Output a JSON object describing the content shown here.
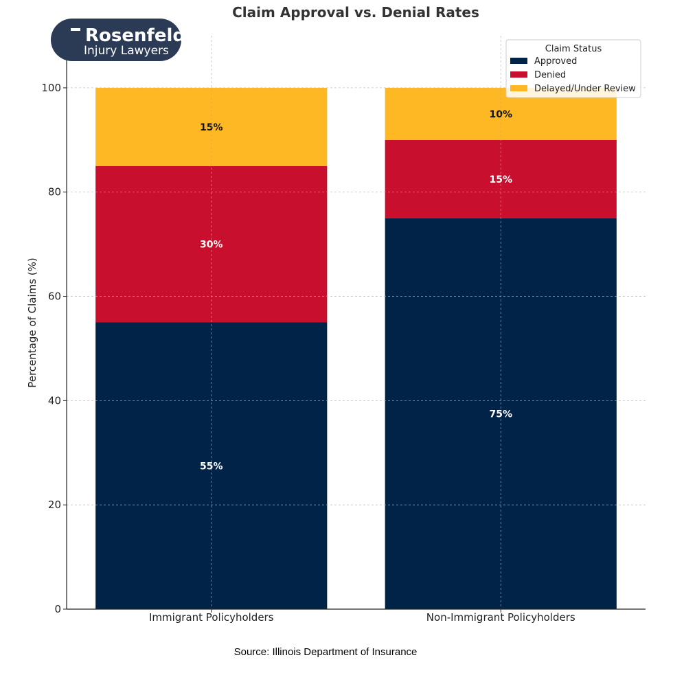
{
  "logo": {
    "line1": "Rosenfeld",
    "line2": "Injury Lawyers",
    "bg_color": "#2b3a55"
  },
  "source_note": "Source: Illinois Department of Insurance",
  "chart_data": {
    "type": "bar",
    "stacked": true,
    "title": "Claim Approval vs. Denial Rates",
    "xlabel": "",
    "ylabel": "Percentage of Claims (%)",
    "ylim": [
      0,
      110
    ],
    "yticks": [
      0,
      20,
      40,
      60,
      80,
      100
    ],
    "grid": true,
    "categories": [
      "Immigrant Policyholders",
      "Non-Immigrant Policyholders"
    ],
    "series": [
      {
        "name": "Approved",
        "values": [
          55,
          75
        ],
        "labels": [
          "55%",
          "75%"
        ],
        "color": "#012348",
        "label_color": "#ffffff"
      },
      {
        "name": "Denied",
        "values": [
          30,
          15
        ],
        "labels": [
          "30%",
          "15%"
        ],
        "color": "#c8102e",
        "label_color": "#ffffff"
      },
      {
        "name": "Delayed/Under Review",
        "values": [
          15,
          10
        ],
        "labels": [
          "15%",
          "10%"
        ],
        "color": "#fdb823",
        "label_color": "#111111"
      }
    ],
    "legend": {
      "title": "Claim Status",
      "position": "top-right"
    }
  }
}
